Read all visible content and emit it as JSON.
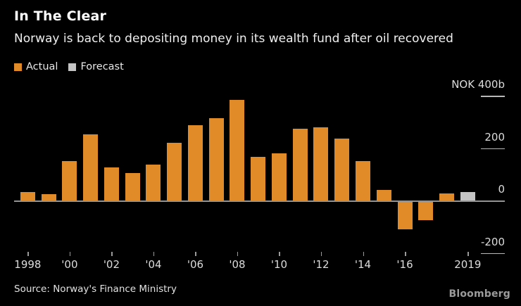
{
  "header": {
    "title": "In The Clear",
    "subtitle": "Norway is back to depositing money in its wealth fund after oil recovered"
  },
  "legend": [
    {
      "label": "Actual",
      "color": "#e08b28"
    },
    {
      "label": "Forecast",
      "color": "#c4c4c4"
    }
  ],
  "chart_data": {
    "type": "bar",
    "title": "In The Clear",
    "subtitle": "Norway is back to depositing money in its wealth fund after oil recovered",
    "ylabel": "NOK billions",
    "unit_label": "NOK 400b",
    "x": [
      1998,
      1999,
      2000,
      2001,
      2002,
      2003,
      2004,
      2005,
      2006,
      2007,
      2008,
      2009,
      2010,
      2011,
      2012,
      2013,
      2014,
      2015,
      2016,
      2017,
      2018,
      2019
    ],
    "values": [
      32,
      25,
      150,
      252,
      125,
      106,
      136,
      219,
      286,
      315,
      384,
      166,
      181,
      274,
      278,
      237,
      149,
      41,
      -107,
      -70,
      27,
      33
    ],
    "bar_types": [
      "actual",
      "actual",
      "actual",
      "actual",
      "actual",
      "actual",
      "actual",
      "actual",
      "actual",
      "actual",
      "actual",
      "actual",
      "actual",
      "actual",
      "actual",
      "actual",
      "actual",
      "actual",
      "actual",
      "actual",
      "actual",
      "forecast"
    ],
    "colors": {
      "actual": "#e08b28",
      "forecast": "#c4c4c4"
    },
    "ylim": [
      -280,
      420
    ],
    "grid": "right-side tick dashes only",
    "legend_position": "top-left",
    "yticks": [
      {
        "value": 400,
        "label": "NOK 400b"
      },
      {
        "value": 200,
        "label": "200"
      },
      {
        "value": 0,
        "label": "0"
      },
      {
        "value": -200,
        "label": "-200"
      }
    ],
    "xticks": [
      {
        "year": 1998,
        "label": "1998"
      },
      {
        "year": 2000,
        "label": "'00"
      },
      {
        "year": 2002,
        "label": "'02"
      },
      {
        "year": 2004,
        "label": "'04"
      },
      {
        "year": 2006,
        "label": "'06"
      },
      {
        "year": 2008,
        "label": "'08"
      },
      {
        "year": 2010,
        "label": "'10"
      },
      {
        "year": 2012,
        "label": "'12"
      },
      {
        "year": 2014,
        "label": "'14"
      },
      {
        "year": 2016,
        "label": "'16"
      },
      {
        "year": 2019,
        "label": "2019"
      }
    ]
  },
  "footer": {
    "source": "Source: Norway's Finance Ministry",
    "brand": "Bloomberg"
  }
}
